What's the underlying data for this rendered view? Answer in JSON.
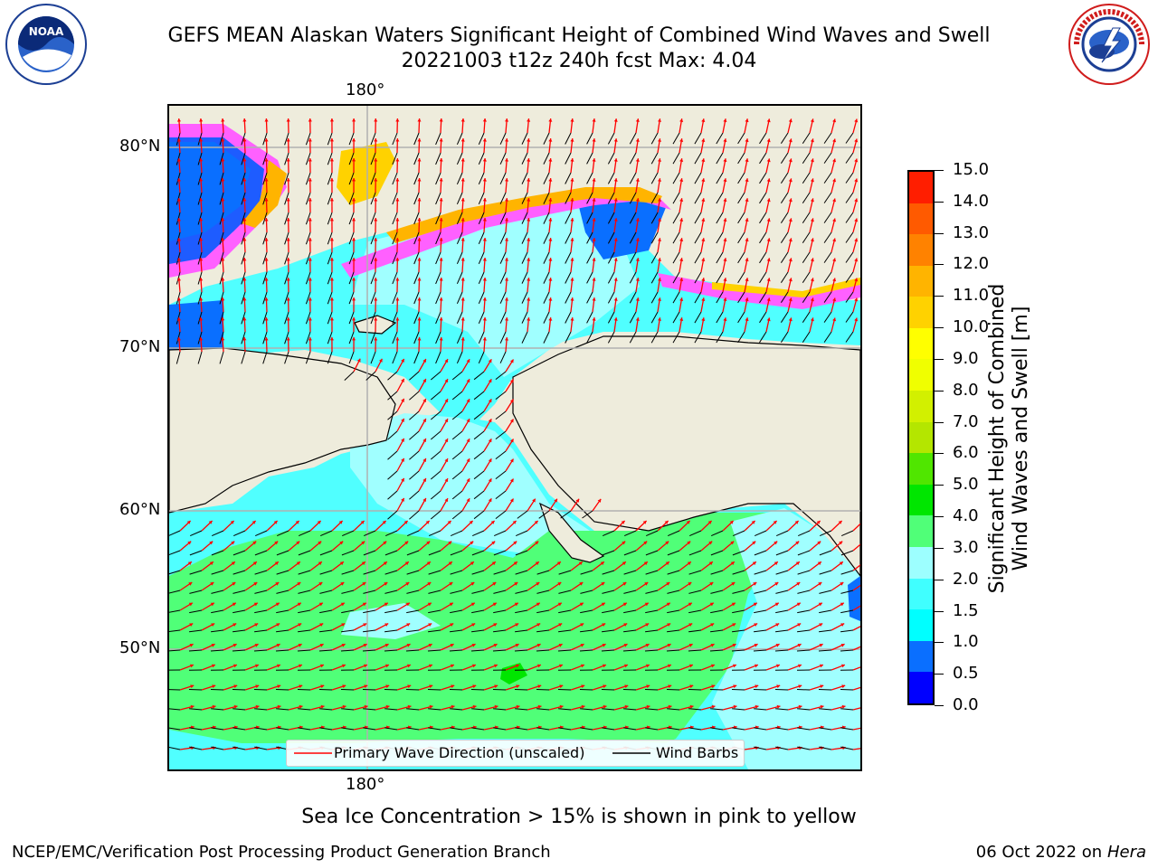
{
  "header": {
    "title_line1": "GEFS MEAN Alaskan Waters Significant Height of Combined Wind Waves and Swell",
    "title_line2": "20221003 t12z 240h fcst   Max: 4.04"
  },
  "logos": {
    "left": {
      "name": "NOAA",
      "ring_text": "NATIONAL OCEANIC AND ATMOSPHERIC ADMINISTRATION · U.S. DEPARTMENT OF COMMERCE"
    },
    "right": {
      "name": "NATIONAL WEATHER SERVICE"
    }
  },
  "map": {
    "lon_label_top": "180°",
    "lon_label_bottom": "180°",
    "lat_labels": [
      "80°N",
      "70°N",
      "60°N",
      "50°N"
    ]
  },
  "colorbar": {
    "title_line1": "Significant Height of Combined",
    "title_line2": "Wind Waves and Swell [m]",
    "ticks": [
      "0.0",
      "0.5",
      "1.0",
      "1.5",
      "2.0",
      "3.0",
      "4.0",
      "5.0",
      "6.0",
      "7.0",
      "8.0",
      "9.0",
      "10.0",
      "11.0",
      "12.0",
      "13.0",
      "14.0",
      "15.0"
    ],
    "colors": [
      "#0000ff",
      "#0a6fff",
      "#00ffff",
      "#40ffff",
      "#9dffff",
      "#50ff78",
      "#00e600",
      "#50e600",
      "#b4e600",
      "#d2f000",
      "#f0ff00",
      "#ffff00",
      "#ffd200",
      "#ffb400",
      "#ff8200",
      "#ff5a00",
      "#ff1e00"
    ]
  },
  "legend": {
    "wave_label": "Primary Wave Direction (unscaled)",
    "wind_label": "Wind Barbs",
    "wave_color": "#ff0000",
    "wind_color": "#000000"
  },
  "notes": {
    "ice": "Sea Ice Concentration > 15% is shown in pink to yellow"
  },
  "footer": {
    "left": "NCEP/EMC/Verification Post Processing Product Generation Branch",
    "date": "06 Oct 2022 on ",
    "machine": "Hera"
  }
}
